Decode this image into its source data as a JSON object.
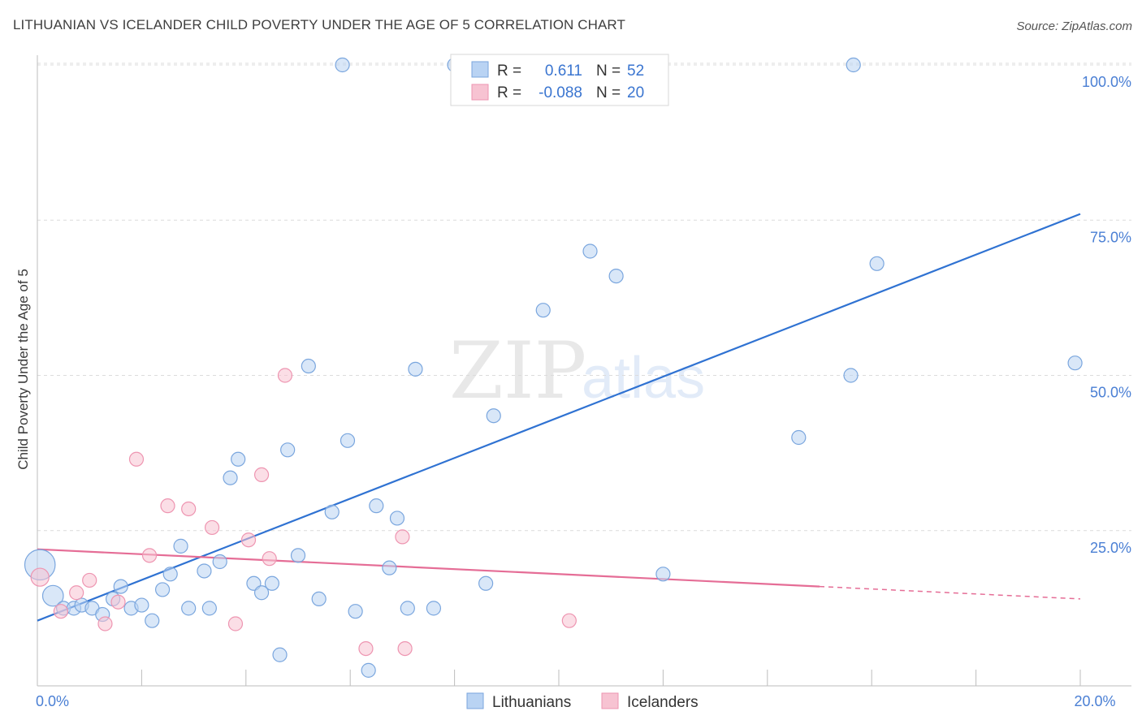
{
  "title": "LITHUANIAN VS ICELANDER CHILD POVERTY UNDER THE AGE OF 5 CORRELATION CHART",
  "source": "Source: ZipAtlas.com",
  "watermark": {
    "zip": "ZIP",
    "atlas": "atlas"
  },
  "colors": {
    "blue_fill": "#b9d3f3",
    "blue_stroke": "#7aa6de",
    "blue_line": "#2f72d2",
    "pink_fill": "#f7c3d2",
    "pink_stroke": "#ee95b1",
    "pink_line": "#e56d96",
    "tick": "#4a7fd4",
    "grid": "#dcdcdc"
  },
  "legend": {
    "r_label": "R =",
    "n_label": "N =",
    "rows": [
      {
        "series": "Lithuanians",
        "r": "0.611",
        "n": "52"
      },
      {
        "series": "Icelanders",
        "r": "-0.088",
        "n": "20"
      }
    ]
  },
  "chart_data": {
    "type": "scatter",
    "title": "LITHUANIAN VS ICELANDER CHILD POVERTY UNDER THE AGE OF 5 CORRELATION CHART",
    "xlabel": "",
    "ylabel": "Child Poverty Under the Age of 5",
    "xlim": [
      0,
      20
    ],
    "ylim": [
      0,
      102
    ],
    "x_tick_labels": [
      {
        "value": 0,
        "label": "0.0%"
      },
      {
        "value": 20,
        "label": "20.0%"
      }
    ],
    "x_minor_ticks": [
      0,
      2,
      4,
      6,
      8,
      10,
      12,
      14,
      16,
      18,
      20
    ],
    "y_ticks": [
      {
        "value": 25,
        "label": "25.0%"
      },
      {
        "value": 50,
        "label": "50.0%"
      },
      {
        "value": 75,
        "label": "75.0%"
      },
      {
        "value": 100,
        "label": "100.0%"
      }
    ],
    "series": [
      {
        "name": "Lithuanians",
        "color": "#b9d3f3",
        "points": [
          [
            0.05,
            19.5,
            2.2
          ],
          [
            0.3,
            14.5,
            1.5
          ],
          [
            0.5,
            12.5,
            1
          ],
          [
            0.7,
            12.5,
            1
          ],
          [
            0.85,
            13,
            1
          ],
          [
            1.05,
            12.5,
            1
          ],
          [
            1.25,
            11.5,
            1
          ],
          [
            1.45,
            14,
            1
          ],
          [
            1.6,
            16,
            1
          ],
          [
            1.8,
            12.5,
            1
          ],
          [
            2.0,
            13,
            1
          ],
          [
            2.2,
            10.5,
            1
          ],
          [
            2.4,
            15.5,
            1
          ],
          [
            2.55,
            18,
            1
          ],
          [
            2.75,
            22.5,
            1
          ],
          [
            2.9,
            12.5,
            1
          ],
          [
            3.2,
            18.5,
            1
          ],
          [
            3.3,
            12.5,
            1
          ],
          [
            3.5,
            20,
            1
          ],
          [
            3.7,
            33.5,
            1
          ],
          [
            3.85,
            36.5,
            1
          ],
          [
            4.15,
            16.5,
            1
          ],
          [
            4.3,
            15,
            1
          ],
          [
            4.5,
            16.5,
            1
          ],
          [
            4.65,
            5,
            1
          ],
          [
            4.8,
            38,
            1
          ],
          [
            5.0,
            21,
            1
          ],
          [
            5.2,
            51.5,
            1
          ],
          [
            5.4,
            14,
            1
          ],
          [
            5.65,
            28,
            1
          ],
          [
            5.95,
            39.5,
            1
          ],
          [
            6.1,
            12,
            1
          ],
          [
            6.35,
            2.5,
            1
          ],
          [
            6.5,
            29,
            1
          ],
          [
            6.75,
            19,
            1
          ],
          [
            6.9,
            27,
            1
          ],
          [
            7.1,
            12.5,
            1
          ],
          [
            7.25,
            51,
            1
          ],
          [
            7.6,
            12.5,
            1
          ],
          [
            8.0,
            100,
            1
          ],
          [
            8.6,
            16.5,
            1
          ],
          [
            8.75,
            43.5,
            1
          ],
          [
            9.7,
            60.5,
            1
          ],
          [
            10.6,
            70,
            1
          ],
          [
            11.1,
            66,
            1
          ],
          [
            12.0,
            18,
            1
          ],
          [
            14.6,
            40,
            1
          ],
          [
            15.6,
            50,
            1
          ],
          [
            15.65,
            100,
            1
          ],
          [
            16.1,
            68,
            1
          ],
          [
            19.9,
            52,
            1
          ],
          [
            5.85,
            100,
            1
          ]
        ],
        "trend": {
          "x0": 0,
          "y0": 10.5,
          "x1": 20,
          "y1": 76
        }
      },
      {
        "name": "Icelanders",
        "color": "#f7c3d2",
        "points": [
          [
            0.05,
            17.5,
            1.3
          ],
          [
            0.45,
            12,
            1
          ],
          [
            0.75,
            15,
            1
          ],
          [
            1.0,
            17,
            1
          ],
          [
            1.3,
            10,
            1
          ],
          [
            1.55,
            13.5,
            1
          ],
          [
            1.9,
            36.5,
            1
          ],
          [
            2.15,
            21,
            1
          ],
          [
            2.5,
            29,
            1
          ],
          [
            2.9,
            28.5,
            1
          ],
          [
            3.35,
            25.5,
            1
          ],
          [
            3.8,
            10,
            1
          ],
          [
            4.05,
            23.5,
            1
          ],
          [
            4.3,
            34,
            1
          ],
          [
            4.45,
            20.5,
            1
          ],
          [
            4.75,
            50,
            1
          ],
          [
            6.3,
            6,
            1
          ],
          [
            7.0,
            24,
            1
          ],
          [
            7.05,
            6,
            1
          ],
          [
            10.2,
            10.5,
            1
          ]
        ],
        "trend": {
          "x0": 0,
          "y0": 22,
          "x1": 15,
          "y1": 16,
          "dash_to_x": 20,
          "dash_to_y": 14
        }
      }
    ]
  }
}
